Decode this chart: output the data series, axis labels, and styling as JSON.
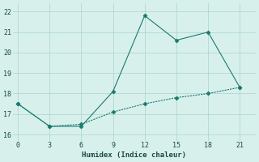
{
  "xlabel": "Humidex (Indice chaleur)",
  "x": [
    0,
    3,
    6,
    9,
    12,
    15,
    18,
    21
  ],
  "line1_y": [
    17.5,
    16.4,
    16.4,
    18.1,
    21.8,
    20.6,
    21.0,
    18.3
  ],
  "line2_y": [
    17.5,
    16.4,
    16.5,
    17.1,
    17.5,
    17.8,
    18.0,
    18.3
  ],
  "line_color": "#1a7a6e",
  "background_color": "#d8f0ec",
  "grid_color": "#b0d8d2",
  "xlim": [
    -0.5,
    22.5
  ],
  "ylim": [
    15.7,
    22.4
  ],
  "yticks": [
    16,
    17,
    18,
    19,
    20,
    21,
    22
  ],
  "xticks": [
    0,
    3,
    6,
    9,
    12,
    15,
    18,
    21
  ],
  "markersize": 2.5
}
